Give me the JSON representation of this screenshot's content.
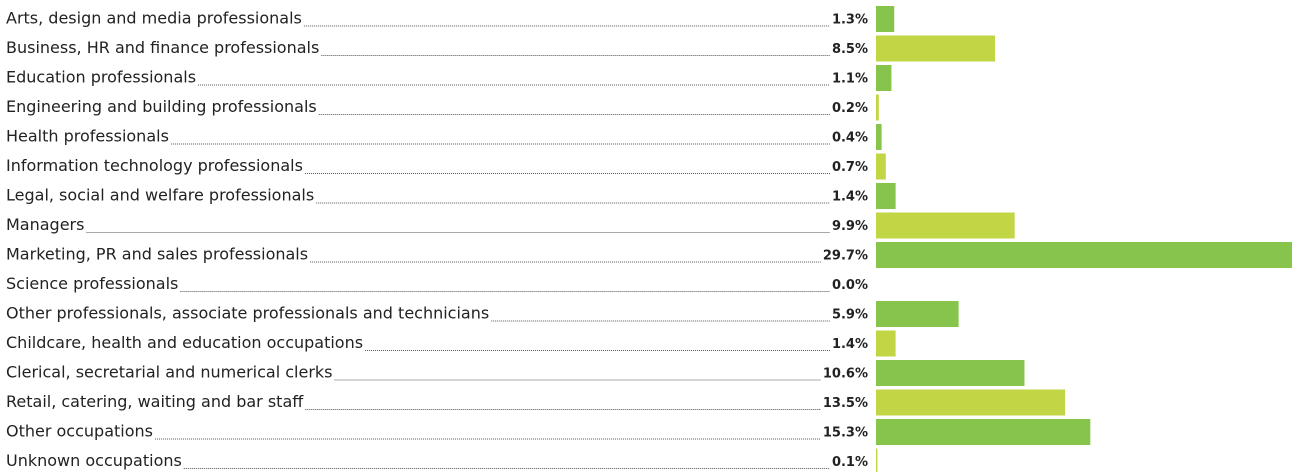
{
  "chart_data": {
    "type": "bar",
    "orientation": "horizontal",
    "categories": [
      "Arts, design and media professionals",
      "Business, HR and finance professionals",
      "Education professionals",
      "Engineering and building professionals",
      "Health professionals",
      "Information technology professionals",
      "Legal, social and welfare professionals",
      "Managers",
      "Marketing, PR and sales professionals",
      "Science professionals",
      "Other professionals, associate professionals and technicians",
      "Childcare, health and education occupations",
      "Clerical, secretarial and numerical clerks",
      "Retail, catering, waiting and bar staff",
      "Other occupations",
      "Unknown occupations"
    ],
    "values": [
      1.3,
      8.5,
      1.1,
      0.2,
      0.4,
      0.7,
      1.4,
      9.9,
      29.7,
      0.0,
      5.9,
      1.4,
      10.6,
      13.5,
      15.3,
      0.1
    ],
    "value_labels": [
      "1.3%",
      "8.5%",
      "1.1%",
      "0.2%",
      "0.4%",
      "0.7%",
      "1.4%",
      "9.9%",
      "29.7%",
      "0.0%",
      "5.9%",
      "1.4%",
      "10.6%",
      "13.5%",
      "15.3%",
      "0.1%"
    ],
    "colors": [
      "#86c44b",
      "#c2d544",
      "#86c44b",
      "#c2d544",
      "#86c44b",
      "#c2d544",
      "#86c44b",
      "#c2d544",
      "#86c44b",
      "#c2d544",
      "#86c44b",
      "#c2d544",
      "#86c44b",
      "#c2d544",
      "#86c44b",
      "#c2d544"
    ]
  }
}
